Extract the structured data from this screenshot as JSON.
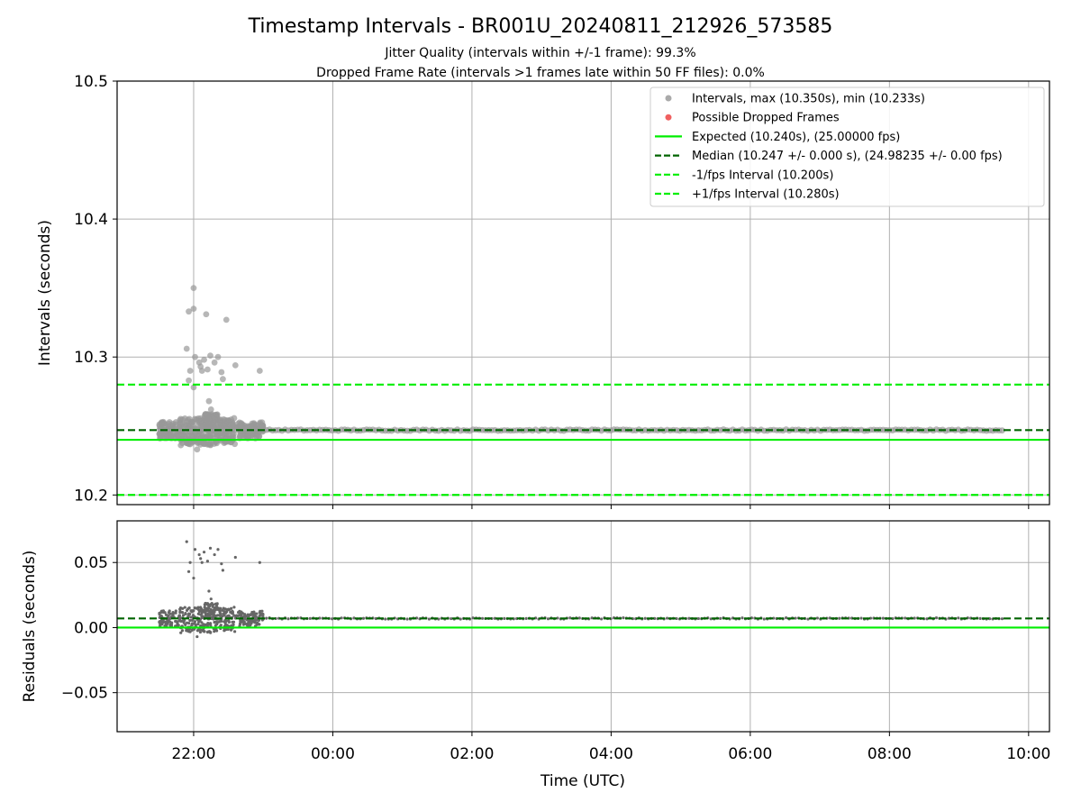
{
  "chart_data": {
    "type": "scatter",
    "title": "Timestamp Intervals - BR001U_20240811_212926_573585",
    "subtitle_lines": [
      "Jitter Quality (intervals within +/-1 frame): 99.3%",
      "Dropped Frame Rate (intervals >1 frames late within 50 FF files): 0.0%"
    ],
    "xlabel": "Time (UTC)",
    "x_ticks": [
      "22:00",
      "00:00",
      "02:00",
      "04:00",
      "06:00",
      "08:00",
      "10:00"
    ],
    "x_tick_hours": [
      22,
      24,
      26,
      28,
      30,
      32,
      34
    ],
    "xlim_hours": [
      20.9,
      34.3
    ],
    "top_panel": {
      "ylabel": "Intervals (seconds)",
      "ylim": [
        10.193,
        10.5
      ],
      "y_ticks": [
        "10.2",
        "10.3",
        "10.4",
        "10.5"
      ],
      "y_tick_values": [
        10.2,
        10.3,
        10.4,
        10.5
      ],
      "grid": true
    },
    "bottom_panel": {
      "ylabel": "Residuals (seconds)",
      "ylim": [
        -0.08,
        0.082
      ],
      "y_ticks": [
        "0.05",
        "0.00",
        "−0.05"
      ],
      "y_tick_values": [
        0.05,
        0.0,
        -0.05
      ],
      "grid": true
    },
    "reference_lines": {
      "expected": 10.24,
      "median": 10.247,
      "minus_1fps": 10.2,
      "plus_1fps": 10.28
    },
    "residual_lines": {
      "zero": 0.0,
      "median_offset": 0.007
    },
    "outliers": [
      {
        "t": 21.9,
        "v": 10.306
      },
      {
        "t": 21.93,
        "v": 10.333
      },
      {
        "t": 22.0,
        "v": 10.335
      },
      {
        "t": 22.0,
        "v": 10.35
      },
      {
        "t": 22.18,
        "v": 10.331
      },
      {
        "t": 22.47,
        "v": 10.327
      },
      {
        "t": 21.95,
        "v": 10.29
      },
      {
        "t": 22.02,
        "v": 10.3
      },
      {
        "t": 22.08,
        "v": 10.296
      },
      {
        "t": 22.1,
        "v": 10.293
      },
      {
        "t": 22.12,
        "v": 10.29
      },
      {
        "t": 22.15,
        "v": 10.298
      },
      {
        "t": 22.2,
        "v": 10.291
      },
      {
        "t": 22.24,
        "v": 10.301
      },
      {
        "t": 22.3,
        "v": 10.296
      },
      {
        "t": 22.35,
        "v": 10.3
      },
      {
        "t": 22.4,
        "v": 10.289
      },
      {
        "t": 22.42,
        "v": 10.284
      },
      {
        "t": 22.6,
        "v": 10.294
      },
      {
        "t": 22.95,
        "v": 10.29
      },
      {
        "t": 21.93,
        "v": 10.283
      },
      {
        "t": 22.0,
        "v": 10.278
      },
      {
        "t": 22.05,
        "v": 10.233
      },
      {
        "t": 22.22,
        "v": 10.268
      },
      {
        "t": 22.25,
        "v": 10.262
      },
      {
        "t": 22.2,
        "v": 10.258
      }
    ],
    "series": [
      {
        "name": "Intervals, max (10.350s), min (10.233s)",
        "color": "#aaaaaa",
        "kind": "scatter"
      },
      {
        "name": "Possible Dropped Frames",
        "color": "#f06060",
        "kind": "scatter"
      },
      {
        "name": "Expected (10.240s), (25.00000 fps)",
        "color": "#00ee00",
        "kind": "line-solid"
      },
      {
        "name": "Median (10.247 +/- 0.000 s), (24.98235 +/- 0.00 fps)",
        "color": "#006400",
        "kind": "line-dashed"
      },
      {
        "name": "-1/fps Interval (10.200s)",
        "color": "#00ee00",
        "kind": "line-dashed"
      },
      {
        "name": "+1/fps Interval (10.280s)",
        "color": "#00ee00",
        "kind": "line-dashed"
      }
    ],
    "legend_position": "upper right"
  }
}
